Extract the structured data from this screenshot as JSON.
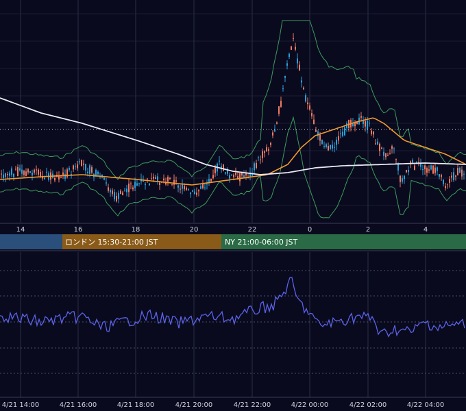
{
  "colors": {
    "background": "#0a0a1f",
    "grid": "#2a2e45",
    "candle_up": "#2a9fd6",
    "candle_down": "#f07a62",
    "bollinger": "#3c9d5a",
    "ma_short": "#f39a2c",
    "ma_long": "#e9e9f2",
    "indicator": "#5b63e8",
    "session_tokyo": "#2a4f7a",
    "session_london": "#8a5a18",
    "session_ny": "#2a6a45"
  },
  "price_axis": {
    "hour_ticks": [
      "14",
      "16",
      "18",
      "20",
      "22",
      "0",
      "2",
      "4"
    ]
  },
  "sessions": [
    {
      "label": "",
      "color": "#2a4f7a"
    },
    {
      "label": "ロンドン 15:30-21:00 JST",
      "color": "#8a5a18"
    },
    {
      "label": "NY 21:00-06:00 JST",
      "color": "#2a6a45"
    }
  ],
  "indicator_axis": {
    "date_ticks": [
      "4/21 14:00",
      "4/21 16:00",
      "4/21 18:00",
      "4/21 20:00",
      "4/21 22:00",
      "4/22 00:00",
      "4/22 02:00",
      "4/22 04:00"
    ]
  },
  "chart_data": {
    "type": "line",
    "series": [
      {
        "name": "",
        "kind": "candlestick",
        "approx_close_levels": [
          0.5,
          0.48,
          0.52,
          0.5,
          0.45,
          0.55,
          0.42,
          0.6,
          0.35,
          0.3,
          0.45,
          0.75,
          0.9,
          0.78,
          0.65,
          0.62,
          0.55,
          0.58,
          0.52,
          0.4,
          0.38
        ]
      },
      {
        "name": "",
        "kind": "moving-average-short"
      },
      {
        "name": "",
        "kind": "moving-average-long"
      },
      {
        "name": "",
        "kind": "bollinger-bands"
      },
      {
        "name": "",
        "kind": "oscillator",
        "approx_levels": [
          0.55,
          0.5,
          0.52,
          0.48,
          0.45,
          0.55,
          0.5,
          0.6,
          0.55,
          0.5,
          0.62,
          0.85,
          0.6,
          0.48,
          0.52,
          0.4,
          0.45,
          0.42,
          0.48,
          0.45,
          0.42
        ]
      }
    ],
    "x_ticks": [
      "14",
      "16",
      "18",
      "20",
      "22",
      "0",
      "2",
      "4"
    ],
    "grid": true
  }
}
